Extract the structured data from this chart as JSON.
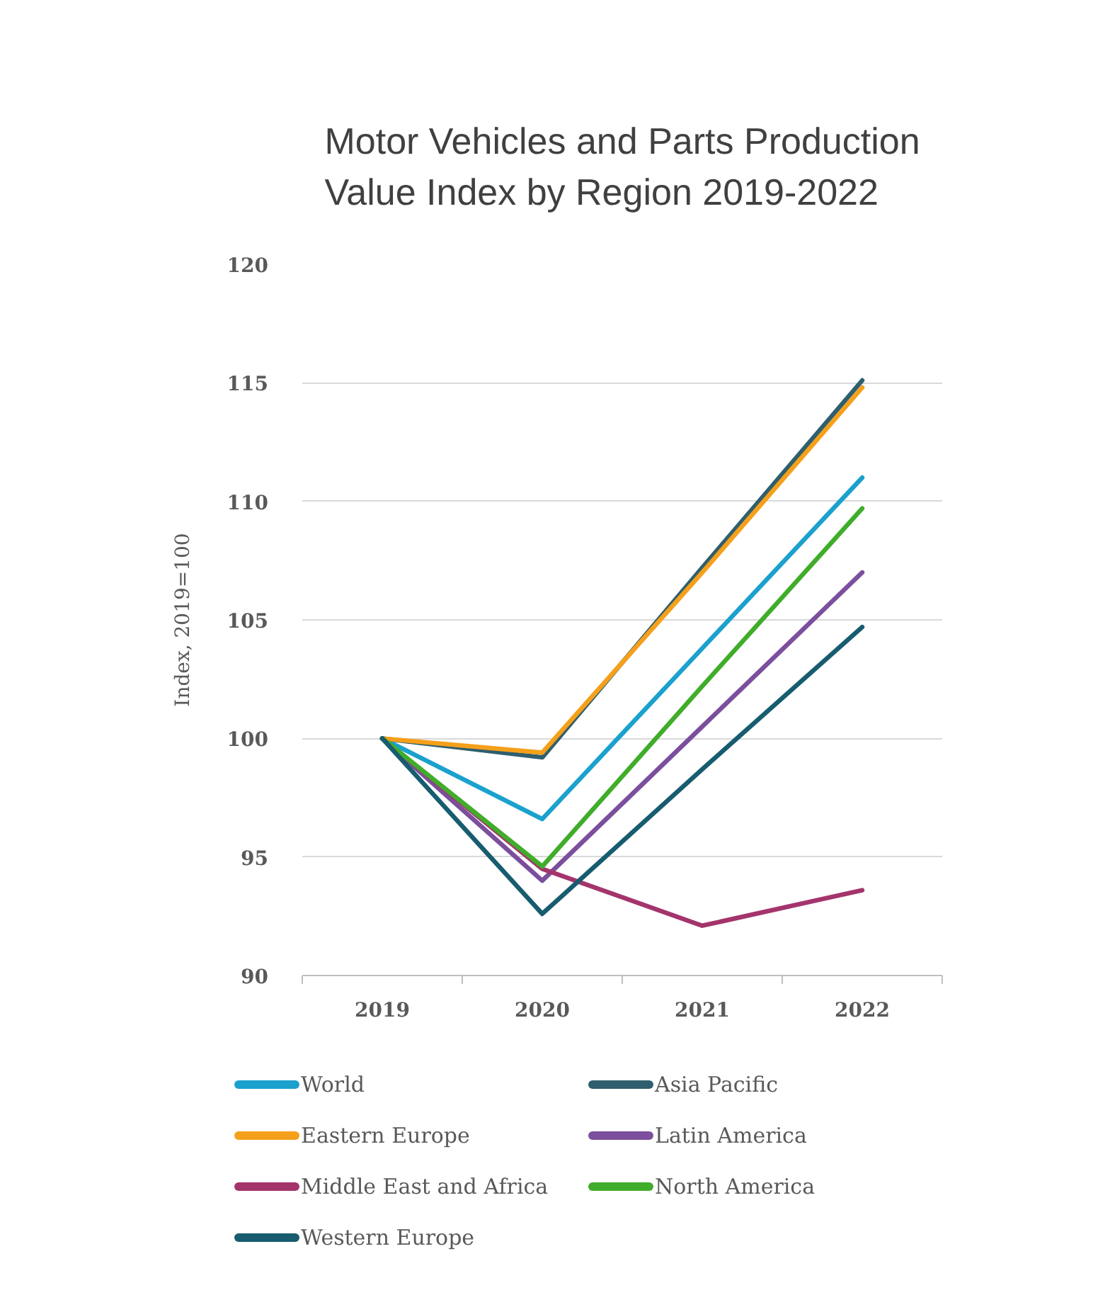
{
  "chart_data": {
    "type": "line",
    "title": "Motor Vehicles and Parts Production\nValue Index by Region 2019-2022",
    "ylabel": "Index, 2019=100",
    "categories": [
      "2019",
      "2020",
      "2021",
      "2022"
    ],
    "ylim": [
      90,
      120
    ],
    "yticks": [
      90,
      95,
      100,
      105,
      110,
      115,
      120
    ],
    "grid": "y",
    "legend": "bottom",
    "line_style": "solid",
    "series": [
      {
        "name": "World",
        "color": "#1ba1cd",
        "values": [
          100,
          96.6,
          103.8,
          111.0
        ]
      },
      {
        "name": "Asia Pacific",
        "color": "#2f5f6e",
        "values": [
          100,
          99.2,
          107.2,
          115.1
        ]
      },
      {
        "name": "Eastern Europe",
        "color": "#f5a01a",
        "values": [
          100,
          99.4,
          107.0,
          114.8
        ]
      },
      {
        "name": "Latin America",
        "color": "#7b4f9d",
        "values": [
          100,
          94.0,
          100.5,
          107.0
        ]
      },
      {
        "name": "Middle East and Africa",
        "color": "#a4346c",
        "values": [
          100,
          94.5,
          92.1,
          93.6
        ]
      },
      {
        "name": "North America",
        "color": "#40ad2a",
        "values": [
          100,
          94.6,
          102.2,
          109.7
        ]
      },
      {
        "name": "Western Europe",
        "color": "#175c6f",
        "values": [
          100,
          92.6,
          98.7,
          104.7
        ]
      }
    ]
  }
}
